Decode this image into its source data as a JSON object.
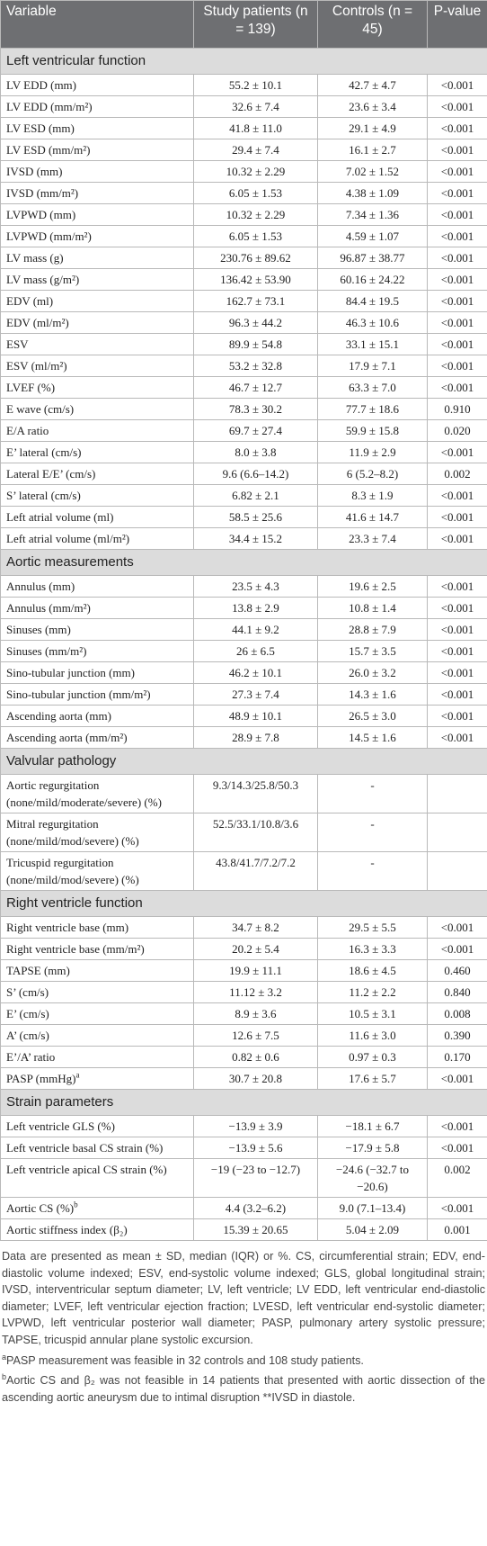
{
  "header": [
    "Variable",
    "Study patients (n = 139)",
    "Controls (n = 45)",
    "P-value"
  ],
  "sections": [
    {
      "title": "Left ventricular function",
      "rows": [
        {
          "cells": [
            "LV EDD (mm)",
            "55.2 ± 10.1",
            "42.7 ± 4.7",
            "<0.001"
          ]
        },
        {
          "cells": [
            "LV EDD (mm/m²)",
            "32.6 ± 7.4",
            "23.6 ± 3.4",
            "<0.001"
          ]
        },
        {
          "cells": [
            "LV ESD (mm)",
            "41.8 ± 11.0",
            "29.1 ± 4.9",
            "<0.001"
          ]
        },
        {
          "cells": [
            "LV ESD (mm/m²)",
            "29.4 ± 7.4",
            "16.1 ± 2.7",
            "<0.001"
          ]
        },
        {
          "cells": [
            "IVSD (mm)",
            "10.32 ± 2.29",
            "7.02 ± 1.52",
            "<0.001"
          ]
        },
        {
          "cells": [
            "IVSD (mm/m²)",
            "6.05 ± 1.53",
            "4.38 ± 1.09",
            "<0.001"
          ]
        },
        {
          "cells": [
            "LVPWD (mm)",
            "10.32 ± 2.29",
            "7.34 ± 1.36",
            "<0.001"
          ]
        },
        {
          "cells": [
            "LVPWD (mm/m²)",
            "6.05 ± 1.53",
            "4.59 ± 1.07",
            "<0.001"
          ]
        },
        {
          "cells": [
            "LV mass (g)",
            "230.76 ± 89.62",
            "96.87 ± 38.77",
            "<0.001"
          ]
        },
        {
          "cells": [
            "LV mass (g/m²)",
            "136.42 ± 53.90",
            "60.16 ± 24.22",
            "<0.001"
          ]
        },
        {
          "cells": [
            "EDV (ml)",
            "162.7 ± 73.1",
            "84.4 ± 19.5",
            "<0.001"
          ]
        },
        {
          "cells": [
            "EDV (ml/m²)",
            "96.3 ± 44.2",
            "46.3 ± 10.6",
            "<0.001"
          ]
        },
        {
          "cells": [
            "ESV",
            "89.9 ± 54.8",
            "33.1 ± 15.1",
            "<0.001"
          ]
        },
        {
          "cells": [
            "ESV (ml/m²)",
            "53.2 ± 32.8",
            "17.9 ± 7.1",
            "<0.001"
          ]
        },
        {
          "cells": [
            "LVEF (%)",
            "46.7 ± 12.7",
            "63.3 ± 7.0",
            "<0.001"
          ]
        },
        {
          "cells": [
            "E wave (cm/s)",
            "78.3 ± 30.2",
            "77.7 ± 18.6",
            "0.910"
          ]
        },
        {
          "cells": [
            "E/A ratio",
            "69.7 ± 27.4",
            "59.9 ± 15.8",
            "0.020"
          ]
        },
        {
          "cells": [
            "E’ lateral (cm/s)",
            "8.0 ± 3.8",
            "11.9 ± 2.9",
            "<0.001"
          ]
        },
        {
          "cells": [
            "Lateral E/E’ (cm/s)",
            "9.6 (6.6–14.2)",
            "6 (5.2–8.2)",
            "0.002"
          ]
        },
        {
          "cells": [
            "S’ lateral (cm/s)",
            "6.82 ± 2.1",
            "8.3 ± 1.9",
            "<0.001"
          ]
        },
        {
          "cells": [
            "Left atrial volume (ml)",
            "58.5 ± 25.6",
            "41.6 ± 14.7",
            "<0.001"
          ]
        },
        {
          "cells": [
            "Left atrial volume (ml/m²)",
            "34.4 ± 15.2",
            "23.3 ± 7.4",
            "<0.001"
          ]
        }
      ]
    },
    {
      "title": "Aortic measurements",
      "rows": [
        {
          "cells": [
            "Annulus (mm)",
            "23.5 ± 4.3",
            "19.6 ± 2.5",
            "<0.001"
          ]
        },
        {
          "cells": [
            "Annulus (mm/m²)",
            "13.8 ± 2.9",
            "10.8 ± 1.4",
            "<0.001"
          ]
        },
        {
          "cells": [
            "Sinuses (mm)",
            "44.1 ± 9.2",
            "28.8 ± 7.9",
            "<0.001"
          ]
        },
        {
          "cells": [
            "Sinuses (mm/m²)",
            "26 ± 6.5",
            "15.7 ± 3.5",
            "<0.001"
          ]
        },
        {
          "cells": [
            "Sino-tubular junction (mm)",
            "46.2 ± 10.1",
            "26.0 ± 3.2",
            "<0.001"
          ]
        },
        {
          "cells": [
            "Sino-tubular junction (mm/m²)",
            "27.3 ± 7.4",
            "14.3 ± 1.6",
            "<0.001"
          ]
        },
        {
          "cells": [
            "Ascending aorta (mm)",
            "48.9 ± 10.1",
            "26.5 ± 3.0",
            "<0.001"
          ]
        },
        {
          "cells": [
            "Ascending aorta (mm/m²)",
            "28.9 ± 7.8",
            "14.5 ± 1.6",
            "<0.001"
          ]
        }
      ]
    },
    {
      "title": "Valvular pathology",
      "rows": [
        {
          "cells": [
            "Aortic regurgitation (none/mild/moderate/severe) (%)",
            "9.3/14.3/25.8/50.3",
            "-"
          ]
        },
        {
          "cells": [
            "Mitral regurgitation (none/mild/mod/severe) (%)",
            "52.5/33.1/10.8/3.6",
            "-"
          ]
        },
        {
          "cells": [
            "Tricuspid regurgitation (none/mild/mod/severe) (%)",
            "43.8/41.7/7.2/7.2",
            "-"
          ]
        }
      ]
    },
    {
      "title": "Right ventricle function",
      "rows": [
        {
          "cells": [
            "Right ventricle base (mm)",
            "34.7 ± 8.2",
            "29.5 ± 5.5",
            "<0.001"
          ]
        },
        {
          "cells": [
            "Right ventricle base (mm/m²)",
            "20.2 ± 5.4",
            "16.3 ± 3.3",
            "<0.001"
          ]
        },
        {
          "cells": [
            "TAPSE (mm)",
            "19.9 ± 11.1",
            "18.6 ± 4.5",
            "0.460"
          ]
        },
        {
          "cells": [
            "S’ (cm/s)",
            "11.12 ± 3.2",
            "11.2 ± 2.2",
            "0.840"
          ]
        },
        {
          "cells": [
            "E’ (cm/s)",
            "8.9 ± 3.6",
            "10.5 ± 3.1",
            "0.008"
          ]
        },
        {
          "cells": [
            "A’ (cm/s)",
            "12.6 ± 7.5",
            "11.6 ± 3.0",
            "0.390"
          ]
        },
        {
          "cells": [
            "E’/A’ ratio",
            "0.82 ± 0.6",
            "0.97 ± 0.3",
            "0.170"
          ]
        },
        {
          "cells": [
            "PASP (mmHg)",
            "30.7 ± 20.8",
            "17.6 ± 5.7",
            "<0.001"
          ],
          "note": "a"
        }
      ]
    },
    {
      "title": "Strain parameters",
      "rows": [
        {
          "cells": [
            "Left ventricle GLS (%)",
            "−13.9 ± 3.9",
            "−18.1 ± 6.7",
            "<0.001"
          ]
        },
        {
          "cells": [
            "Left ventricle basal CS strain (%)",
            "−13.9 ± 5.6",
            "−17.9 ± 5.8",
            "<0.001"
          ]
        },
        {
          "cells": [
            "Left ventricle apical CS strain (%)",
            "−19 (−23 to −12.7)",
            "−24.6 (−32.7 to −20.6)",
            "0.002"
          ]
        },
        {
          "cells": [
            "Aortic CS (%)",
            "4.4 (3.2–6.2)",
            "9.0 (7.1–13.4)",
            "<0.001"
          ],
          "note": "b"
        },
        {
          "cells": [
            "Aortic stiffness index (β₂)",
            "15.39 ± 20.65",
            "5.04 ± 2.09",
            "0.001"
          ]
        }
      ]
    }
  ],
  "footnotes": [
    {
      "text": "Data are presented as mean ± SD, median (IQR) or %. CS, circumferential strain; EDV, end-diastolic volume indexed; ESV, end-systolic volume indexed; GLS, global longitudinal strain; IVSD, interventricular septum diameter; LV, left ventricle; LV EDD, left ventricular end-diastolic diameter; LVEF, left ventricular ejection fraction; LVESD, left ventricular end-systolic diameter; LVPWD, left ventricular posterior wall diameter; PASP, pulmonary artery systolic pressure; TAPSE, tricuspid annular plane systolic excursion."
    },
    {
      "marker": "a",
      "text": "PASP measurement was feasible in 32 controls and 108 study patients."
    },
    {
      "marker": "b",
      "text": "Aortic CS and β₂ was not feasible in 14 patients that presented with aortic dissection of the ascending aortic aneurysm due to intimal disruption **IVSD in diastole."
    }
  ]
}
